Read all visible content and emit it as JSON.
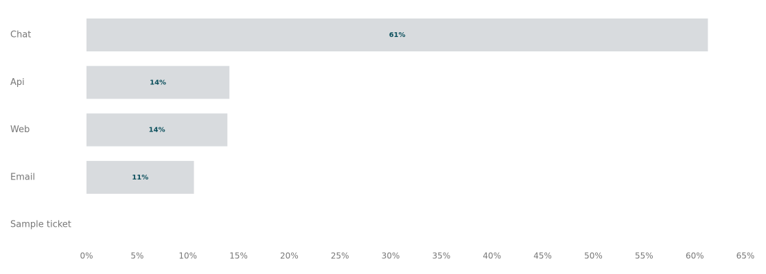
{
  "chart_data": {
    "type": "hbar",
    "categories": [
      "Chat",
      "Api",
      "Web",
      "Email",
      "Sample ticket"
    ],
    "values": [
      61.3,
      14.1,
      13.9,
      10.6,
      null
    ],
    "value_labels": [
      "61%",
      "14%",
      "14%",
      "11%",
      null
    ],
    "color": "#d8dbde",
    "xlim": [
      0,
      65
    ],
    "xticks": [
      {
        "value": 0,
        "label": "0%"
      },
      {
        "value": 5,
        "label": "5%"
      },
      {
        "value": 10,
        "label": "10%"
      },
      {
        "value": 15,
        "label": "15%"
      },
      {
        "value": 20,
        "label": "20%"
      },
      {
        "value": 25,
        "label": "25%"
      },
      {
        "value": 30,
        "label": "30%"
      },
      {
        "value": 35,
        "label": "35%"
      },
      {
        "value": 40,
        "label": "40%"
      },
      {
        "value": 45,
        "label": "45%"
      },
      {
        "value": 50,
        "label": "50%"
      },
      {
        "value": 55,
        "label": "55%"
      },
      {
        "value": 60,
        "label": "60%"
      },
      {
        "value": 65,
        "label": "65%"
      }
    ],
    "grid": false
  }
}
